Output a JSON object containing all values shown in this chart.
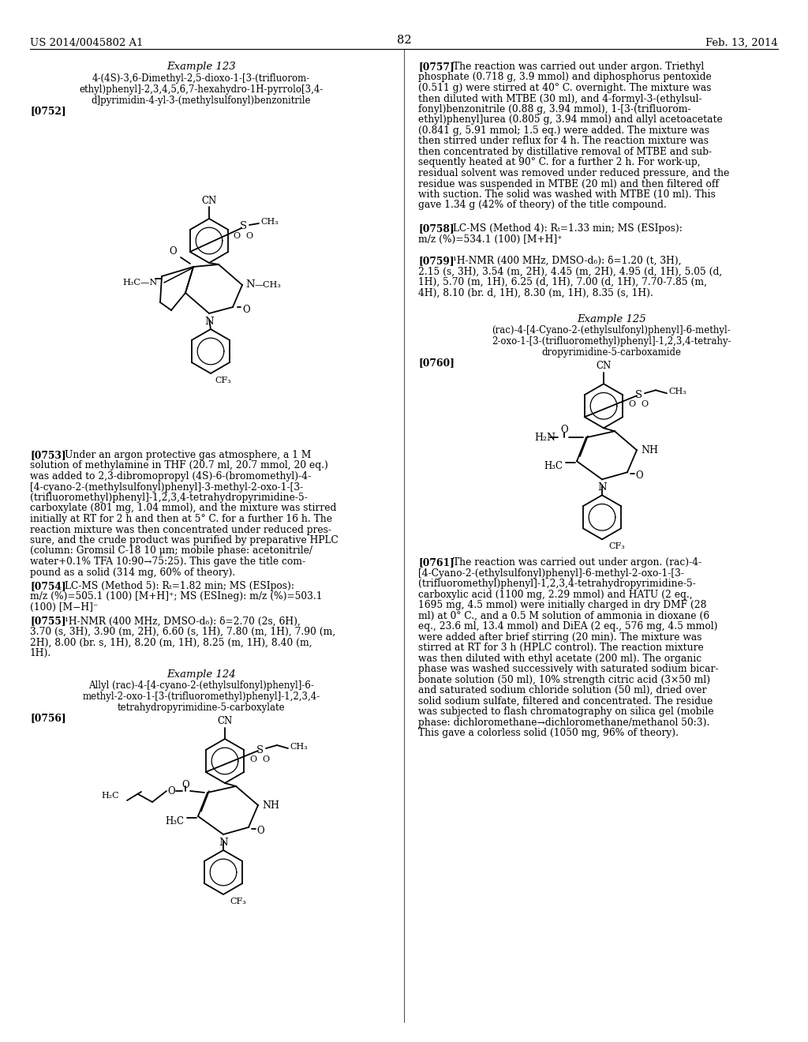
{
  "page_number": "82",
  "patent_number": "US 2014/0045802 A1",
  "patent_date": "Feb. 13, 2014",
  "background_color": "#ffffff"
}
